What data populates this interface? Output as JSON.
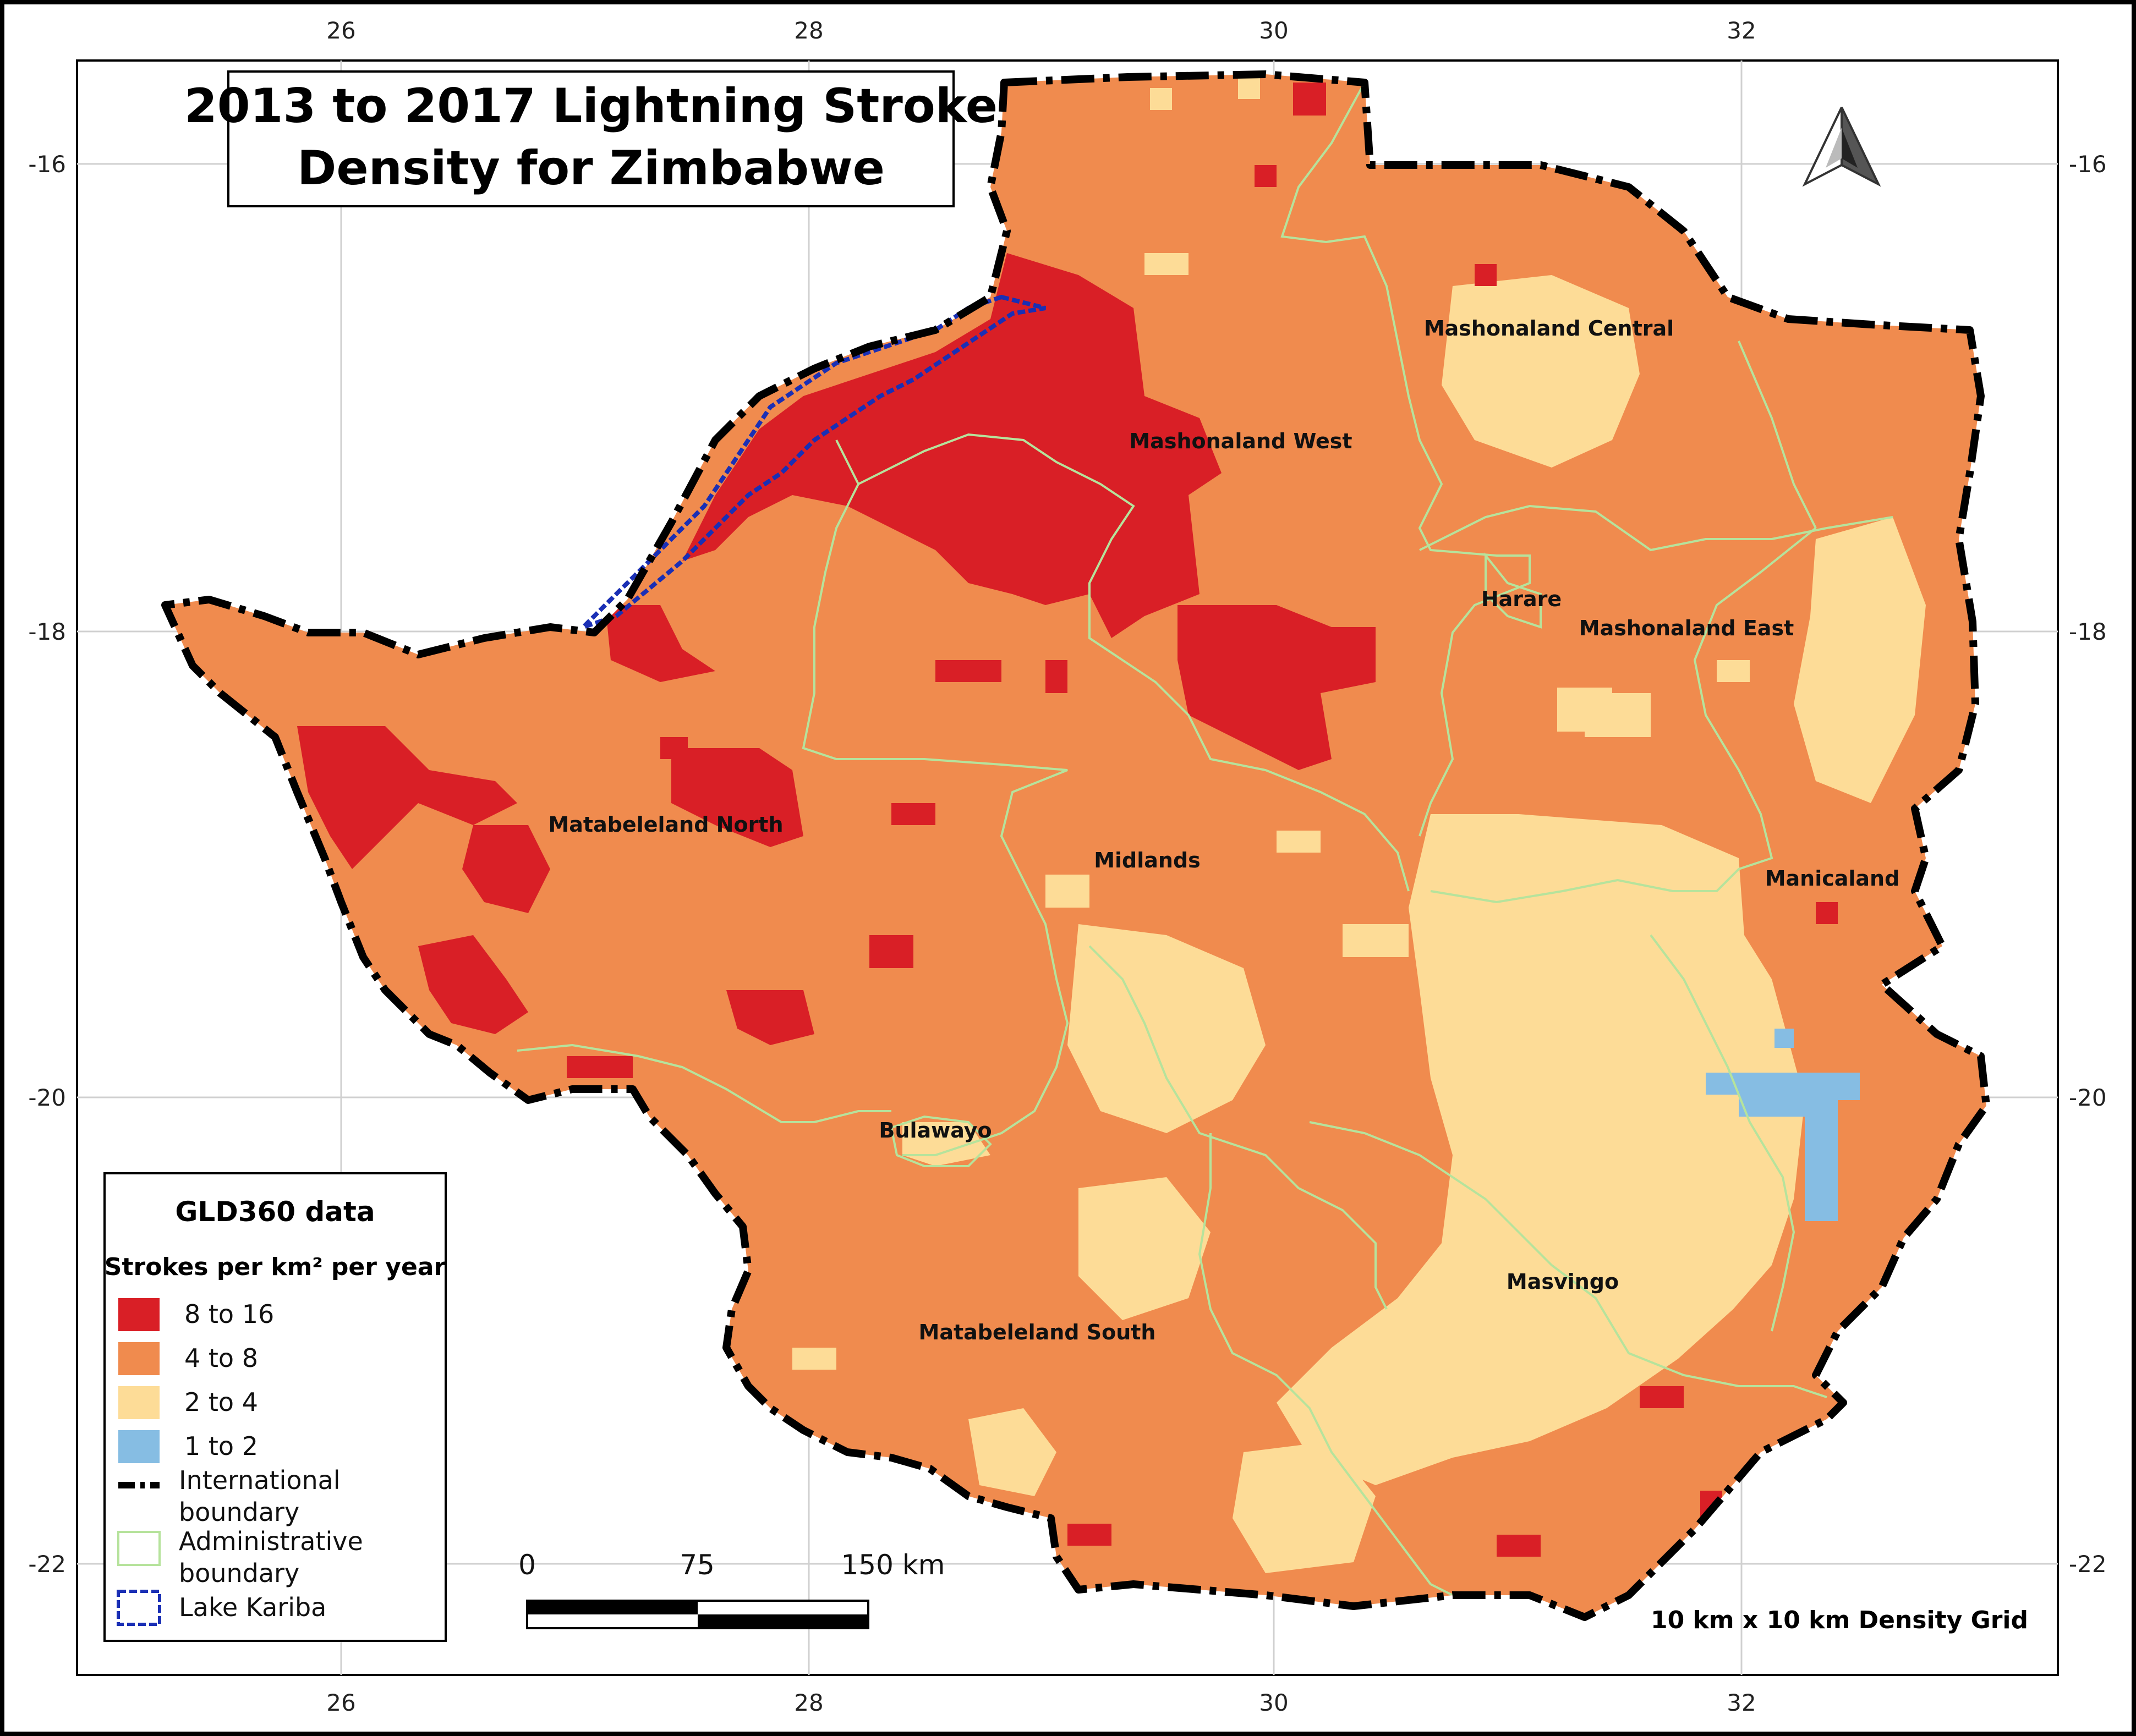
{
  "title": {
    "line1": "2013 to 2017 Lightning Stroke",
    "line2": "Density for Zimbabwe"
  },
  "axes": {
    "longitude_ticks": [
      "26",
      "28",
      "30",
      "32"
    ],
    "latitude_ticks": [
      "-16",
      "-18",
      "-20",
      "-22"
    ]
  },
  "provinces": [
    {
      "name": "Mashonaland Central"
    },
    {
      "name": "Mashonaland West"
    },
    {
      "name": "Harare"
    },
    {
      "name": "Mashonaland East"
    },
    {
      "name": "Matabeleland North"
    },
    {
      "name": "Midlands"
    },
    {
      "name": "Manicaland"
    },
    {
      "name": "Bulawayo"
    },
    {
      "name": "Masvingo"
    },
    {
      "name": "Matabeleland South"
    }
  ],
  "legend": {
    "title": "GLD360 data",
    "subtitle": "Strokes per km² per year",
    "classes": [
      {
        "label": "8 to 16",
        "color": "#d91f26"
      },
      {
        "label": "4 to 8",
        "color": "#f08b4e"
      },
      {
        "label": "2 to 4",
        "color": "#fddc97"
      },
      {
        "label": "1 to 2",
        "color": "#86bde3"
      }
    ],
    "intl_boundary_line1": "International",
    "intl_boundary_line2": "boundary",
    "admin_boundary_line1": "Administrative",
    "admin_boundary_line2": "boundary",
    "lake_label": "Lake Kariba"
  },
  "scale_bar": {
    "labels": [
      "0",
      "75",
      "150 km"
    ]
  },
  "grid_note": "10 km x 10 km Density Grid",
  "colors": {
    "high": "#d91f26",
    "medium": "#f08b4e",
    "low": "#fddc97",
    "very_low": "#86bde3",
    "admin_line": "#b6e39c",
    "lake_line": "#1a2fb5",
    "boundary": "#000000"
  }
}
